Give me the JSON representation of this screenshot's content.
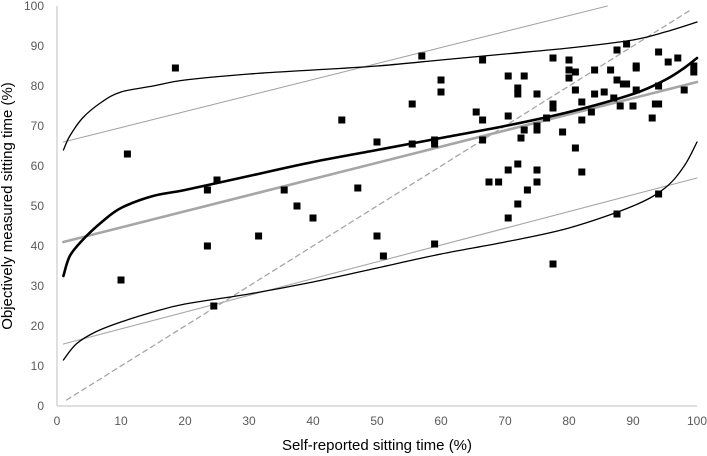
{
  "chart_data": {
    "type": "scatter",
    "title": "",
    "xlabel": "Self-reported sitting time (%)",
    "ylabel": "Objectively measured sitting time (%)",
    "xlim": [
      0,
      100
    ],
    "ylim": [
      0,
      100
    ],
    "x_ticks": [
      0,
      10,
      20,
      30,
      40,
      50,
      60,
      70,
      80,
      90,
      100
    ],
    "y_ticks": [
      0,
      10,
      20,
      30,
      40,
      50,
      60,
      70,
      80,
      90,
      100
    ],
    "grid": false,
    "colors": {
      "points": "#000000",
      "black_curves": "#000000",
      "gray_lines": "#a6a6a6",
      "identity_line": "#a6a6a6",
      "axis": "#bfbfbf",
      "tick_text": "#595959"
    },
    "points": [
      {
        "x": 10,
        "y": 31.5
      },
      {
        "x": 11,
        "y": 63
      },
      {
        "x": 18.5,
        "y": 84.5
      },
      {
        "x": 23.5,
        "y": 54
      },
      {
        "x": 23.5,
        "y": 40
      },
      {
        "x": 24.5,
        "y": 25
      },
      {
        "x": 25,
        "y": 56.5
      },
      {
        "x": 31.5,
        "y": 42.5
      },
      {
        "x": 35.5,
        "y": 54
      },
      {
        "x": 37.5,
        "y": 50
      },
      {
        "x": 40,
        "y": 47
      },
      {
        "x": 44.5,
        "y": 71.5
      },
      {
        "x": 47,
        "y": 54.5
      },
      {
        "x": 50,
        "y": 66
      },
      {
        "x": 50,
        "y": 42.5
      },
      {
        "x": 51,
        "y": 37.5
      },
      {
        "x": 55.5,
        "y": 75.5
      },
      {
        "x": 55.5,
        "y": 65.5
      },
      {
        "x": 57,
        "y": 87.5
      },
      {
        "x": 59,
        "y": 66.5
      },
      {
        "x": 59,
        "y": 65.5
      },
      {
        "x": 59,
        "y": 40.5
      },
      {
        "x": 60,
        "y": 81.5
      },
      {
        "x": 60,
        "y": 78.5
      },
      {
        "x": 65.5,
        "y": 73.5
      },
      {
        "x": 66.5,
        "y": 86.5
      },
      {
        "x": 66.5,
        "y": 71.5
      },
      {
        "x": 66.5,
        "y": 66.5
      },
      {
        "x": 67.5,
        "y": 56
      },
      {
        "x": 69,
        "y": 56
      },
      {
        "x": 70.5,
        "y": 82.5
      },
      {
        "x": 70.5,
        "y": 72.5
      },
      {
        "x": 70.5,
        "y": 59
      },
      {
        "x": 70.5,
        "y": 47
      },
      {
        "x": 72,
        "y": 79.5
      },
      {
        "x": 72,
        "y": 78
      },
      {
        "x": 72,
        "y": 60.5
      },
      {
        "x": 72,
        "y": 50.5
      },
      {
        "x": 72.5,
        "y": 67
      },
      {
        "x": 73,
        "y": 82.5
      },
      {
        "x": 73,
        "y": 69
      },
      {
        "x": 73.5,
        "y": 54
      },
      {
        "x": 75,
        "y": 78
      },
      {
        "x": 75,
        "y": 70
      },
      {
        "x": 75,
        "y": 69
      },
      {
        "x": 75,
        "y": 59
      },
      {
        "x": 75,
        "y": 56
      },
      {
        "x": 76.5,
        "y": 72
      },
      {
        "x": 77.5,
        "y": 87
      },
      {
        "x": 77.5,
        "y": 75.5
      },
      {
        "x": 77.5,
        "y": 74.5
      },
      {
        "x": 77.5,
        "y": 35.5
      },
      {
        "x": 79,
        "y": 68.5
      },
      {
        "x": 80,
        "y": 86.5
      },
      {
        "x": 80,
        "y": 84
      },
      {
        "x": 80,
        "y": 82
      },
      {
        "x": 81,
        "y": 83.5
      },
      {
        "x": 81,
        "y": 79
      },
      {
        "x": 81,
        "y": 64.5
      },
      {
        "x": 82,
        "y": 76
      },
      {
        "x": 82,
        "y": 71.5
      },
      {
        "x": 82,
        "y": 58.5
      },
      {
        "x": 83.5,
        "y": 73.5
      },
      {
        "x": 84,
        "y": 84
      },
      {
        "x": 84,
        "y": 78
      },
      {
        "x": 85.5,
        "y": 78.5
      },
      {
        "x": 86.5,
        "y": 84
      },
      {
        "x": 87,
        "y": 77
      },
      {
        "x": 87.5,
        "y": 89
      },
      {
        "x": 87.5,
        "y": 81.5
      },
      {
        "x": 87.5,
        "y": 48
      },
      {
        "x": 88,
        "y": 75
      },
      {
        "x": 88.5,
        "y": 80.5
      },
      {
        "x": 89,
        "y": 90.5
      },
      {
        "x": 89,
        "y": 80.5
      },
      {
        "x": 90,
        "y": 75
      },
      {
        "x": 90.5,
        "y": 79
      },
      {
        "x": 90.5,
        "y": 85
      },
      {
        "x": 90.5,
        "y": 84.5
      },
      {
        "x": 93,
        "y": 72
      },
      {
        "x": 93.5,
        "y": 75.5
      },
      {
        "x": 94,
        "y": 88.5
      },
      {
        "x": 94,
        "y": 80
      },
      {
        "x": 94,
        "y": 75.5
      },
      {
        "x": 94,
        "y": 53
      },
      {
        "x": 95.5,
        "y": 86
      },
      {
        "x": 97,
        "y": 87
      },
      {
        "x": 98,
        "y": 79
      },
      {
        "x": 99.5,
        "y": 85
      },
      {
        "x": 99.5,
        "y": 83.5
      }
    ],
    "lines": [
      {
        "name": "identity",
        "style": "dashed-gray",
        "points": [
          [
            1.5,
            1.5
          ],
          [
            99,
            99
          ]
        ]
      },
      {
        "name": "linear-fit",
        "style": "thick-gray",
        "points": [
          [
            1,
            41
          ],
          [
            100,
            81
          ]
        ]
      },
      {
        "name": "linear-upper-limit",
        "style": "thin-gray",
        "points": [
          [
            1,
            66
          ],
          [
            86,
            100
          ]
        ]
      },
      {
        "name": "linear-lower-limit",
        "style": "thin-gray",
        "points": [
          [
            1,
            15.5
          ],
          [
            100,
            57
          ]
        ]
      },
      {
        "name": "nonlinear-fit",
        "style": "thick-black",
        "points": [
          [
            1,
            32.5
          ],
          [
            2,
            37.5
          ],
          [
            4,
            41.5
          ],
          [
            7,
            46
          ],
          [
            10,
            49.5
          ],
          [
            15,
            52.5
          ],
          [
            20,
            54
          ],
          [
            30,
            57.5
          ],
          [
            40,
            61
          ],
          [
            50,
            64
          ],
          [
            60,
            67
          ],
          [
            70,
            70
          ],
          [
            80,
            73.5
          ],
          [
            90,
            78
          ],
          [
            95,
            81.5
          ],
          [
            98,
            84.5
          ],
          [
            100,
            87
          ]
        ]
      },
      {
        "name": "nonlinear-upper-limit",
        "style": "thin-black",
        "points": [
          [
            1,
            64
          ],
          [
            2,
            67.5
          ],
          [
            4,
            72
          ],
          [
            7,
            76
          ],
          [
            10,
            78.5
          ],
          [
            15,
            80
          ],
          [
            20,
            81.5
          ],
          [
            30,
            83
          ],
          [
            40,
            84
          ],
          [
            50,
            85
          ],
          [
            60,
            86.5
          ],
          [
            70,
            88
          ],
          [
            80,
            89.5
          ],
          [
            90,
            91.5
          ],
          [
            95,
            93.5
          ],
          [
            100,
            96
          ]
        ]
      },
      {
        "name": "nonlinear-lower-limit",
        "style": "thin-black",
        "points": [
          [
            1,
            11.5
          ],
          [
            3,
            15.5
          ],
          [
            6,
            18.5
          ],
          [
            10,
            21
          ],
          [
            15,
            23.5
          ],
          [
            20,
            25.5
          ],
          [
            30,
            28
          ],
          [
            40,
            31
          ],
          [
            50,
            34.5
          ],
          [
            60,
            38
          ],
          [
            70,
            41
          ],
          [
            80,
            44.5
          ],
          [
            90,
            50
          ],
          [
            95,
            54.5
          ],
          [
            98,
            60
          ],
          [
            100,
            66
          ]
        ]
      }
    ]
  }
}
